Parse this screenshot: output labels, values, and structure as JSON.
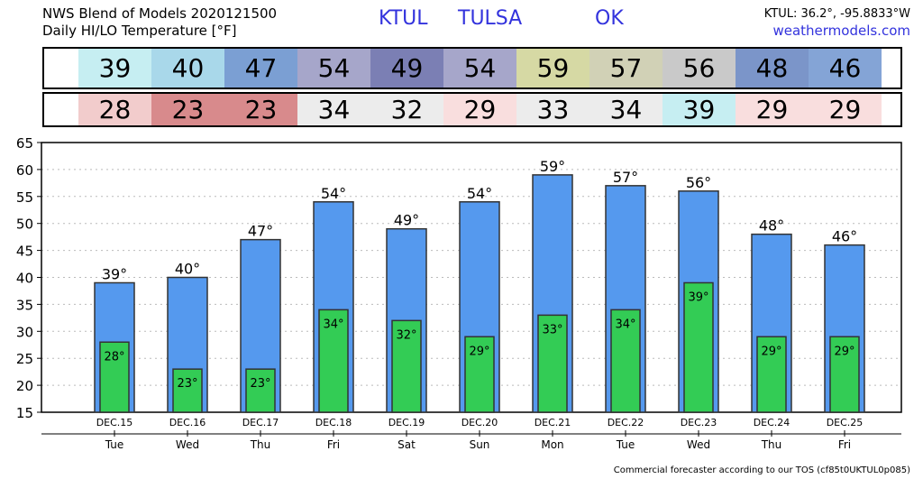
{
  "header": {
    "title_line1": "NWS Blend of Models 2020121500",
    "title_line2": "Daily HI/LO Temperature [°F]",
    "station": "KTUL",
    "city": "TULSA",
    "state": "OK",
    "coords": "KTUL: 36.2°, -95.8833°W",
    "site": "weathermodels.com"
  },
  "footer": {
    "text": "Commercial forecaster according to our TOS (cf85t0UKTUL0p085)"
  },
  "colors": {
    "hi_bar": "#5599ee",
    "lo_bar": "#33cc55",
    "hi_cells": [
      "#c6eef2",
      "#a9d8ea",
      "#7b9fd3",
      "#a6a6ca",
      "#7b7fb4",
      "#a6a6ca",
      "#d6d9a4",
      "#d1d1b6",
      "#c9c9c9",
      "#7b95c9",
      "#84a4d6"
    ],
    "lo_cells": [
      "#f2cccc",
      "#d88a8c",
      "#d88a8c",
      "#ececec",
      "#ececec",
      "#f9dede",
      "#ececec",
      "#ececec",
      "#c6eef2",
      "#f9dede",
      "#f9dede"
    ]
  },
  "chart_data": {
    "type": "bar",
    "title": "Daily HI/LO Temperature [°F]",
    "ylim": [
      15,
      65
    ],
    "yticks": [
      15,
      20,
      25,
      30,
      35,
      40,
      45,
      50,
      55,
      60,
      65
    ],
    "grid": true,
    "dates": [
      "DEC.15",
      "DEC.16",
      "DEC.17",
      "DEC.18",
      "DEC.19",
      "DEC.20",
      "DEC.21",
      "DEC.22",
      "DEC.23",
      "DEC.24",
      "DEC.25"
    ],
    "days": [
      "Tue",
      "Wed",
      "Thu",
      "Fri",
      "Sat",
      "Sun",
      "Mon",
      "Tue",
      "Wed",
      "Thu",
      "Fri"
    ],
    "series": [
      {
        "values": [
          39,
          40,
          47,
          54,
          49,
          54,
          59,
          57,
          56,
          48,
          46
        ]
      },
      {
        "values": [
          28,
          23,
          23,
          34,
          32,
          29,
          33,
          34,
          39,
          29,
          29
        ]
      }
    ],
    "unit": "°"
  }
}
